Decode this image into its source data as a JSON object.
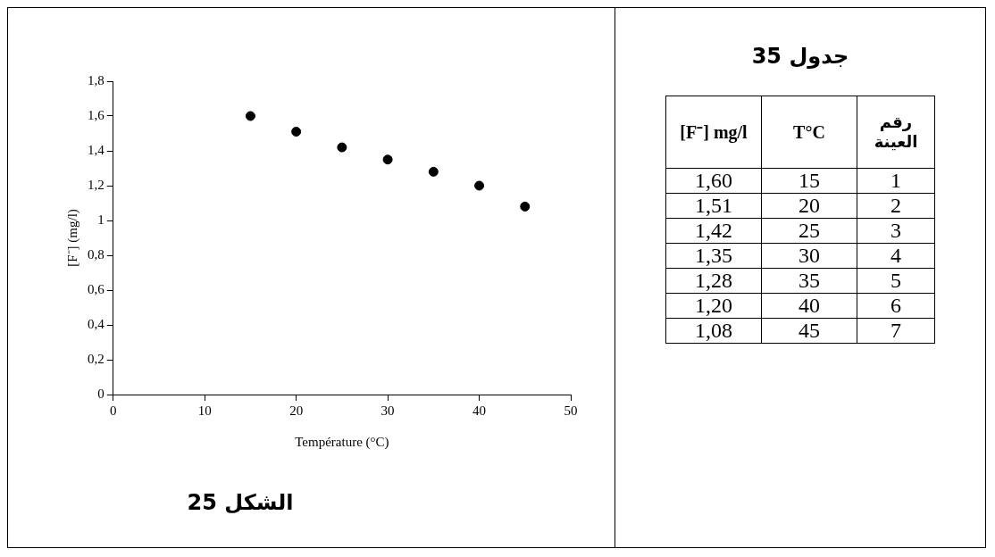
{
  "chart_data": {
    "type": "scatter",
    "xlabel": "Température (°C)",
    "ylabel": "[F⁻] (mg/l)",
    "x": [
      15,
      20,
      25,
      30,
      35,
      40,
      45
    ],
    "values": [
      1.6,
      1.51,
      1.42,
      1.35,
      1.28,
      1.2,
      1.08
    ],
    "color": "#000000",
    "marker": "circle",
    "xlim": [
      0,
      50
    ],
    "xticks": [
      0,
      10,
      20,
      30,
      40,
      50
    ],
    "ylim": [
      0,
      1.8
    ],
    "yticks": [
      0,
      {
        "value": 0.2,
        "label": "0,2"
      },
      {
        "value": 0.4,
        "label": "0,4"
      },
      {
        "value": 0.6,
        "label": "0,6"
      },
      {
        "value": 0.8,
        "label": "0,8"
      },
      1,
      {
        "value": 1.2,
        "label": "1,2"
      },
      {
        "value": 1.4,
        "label": "1,4"
      },
      {
        "value": 1.6,
        "label": "1,6"
      },
      {
        "value": 1.8,
        "label": "1,8"
      }
    ],
    "annotations": [
      "الشكل 25",
      "جدول 35",
      "[F⁻] mg/l",
      "T°C",
      "رقم العينة",
      "1,60",
      "15",
      "1",
      "1,51",
      "20",
      "2",
      "1,42",
      "25",
      "3",
      "1,35",
      "30",
      "4",
      "1,28",
      "35",
      "5",
      "1,20",
      "40",
      "6",
      "1,08",
      "45",
      "7"
    ]
  }
}
